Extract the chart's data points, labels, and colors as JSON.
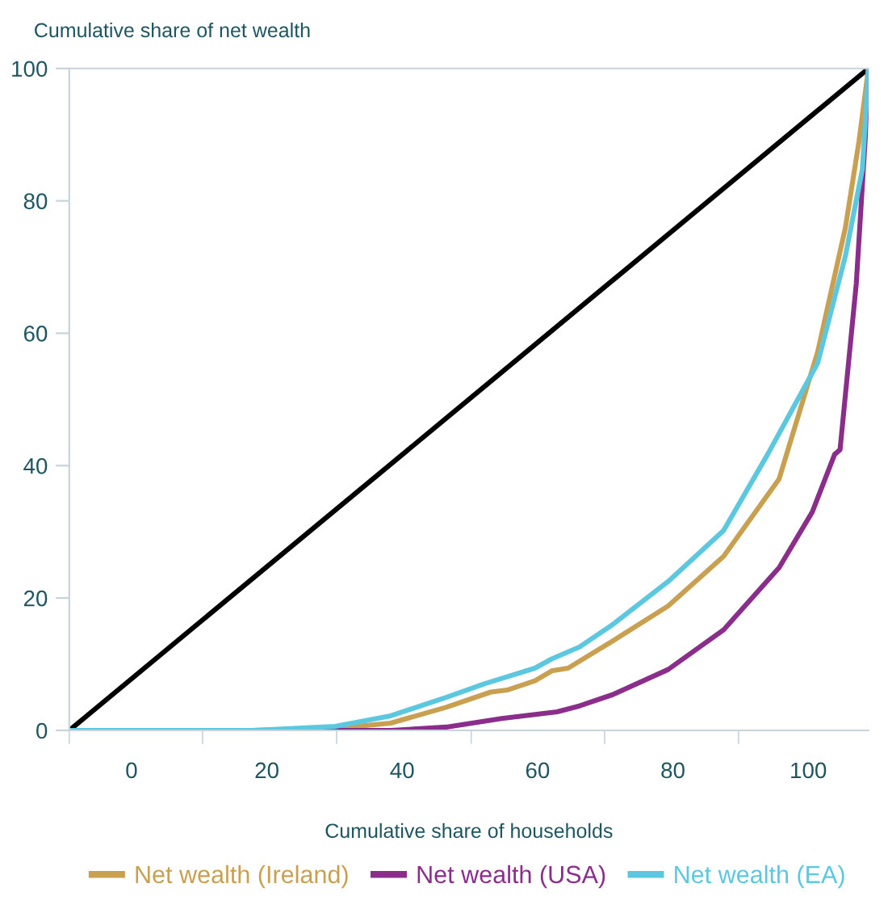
{
  "chart_data": {
    "type": "line",
    "ylabel": "Cumulative share of net wealth",
    "xlabel": "Cumulative share of households",
    "xlim": [
      -9.2,
      108.9
    ],
    "xticks": [
      {
        "value": -9.2,
        "label": null
      },
      {
        "value": 10.5,
        "label": null
      },
      {
        "value": 30.3,
        "label": null
      },
      {
        "value": 50.2,
        "label": null
      },
      {
        "value": 69.9,
        "label": null
      },
      {
        "value": 89.7,
        "label": null
      },
      0,
      20,
      40,
      60,
      80,
      100
    ],
    "ylim": [
      0,
      100
    ],
    "yticks": [
      0,
      20,
      40,
      60,
      80,
      100
    ],
    "grid": false,
    "legend": "bottom",
    "marker": "none",
    "line_style": "solid",
    "series": [
      {
        "color": "#000000",
        "x": [
          -9.2,
          108.9
        ],
        "values": [
          0,
          100
        ]
      },
      {
        "name": "Net wealth (Ireland)",
        "color": "#c9a04f",
        "x": [
          -9.2,
          17.9,
          30.1,
          38.3,
          46.5,
          53.1,
          55.5,
          59.6,
          62.1,
          64.5,
          71.1,
          79.3,
          87.5,
          95.7,
          101.4,
          105.5,
          107.5,
          108.9
        ],
        "values": [
          0,
          0,
          0.3,
          1.1,
          3.5,
          5.8,
          6.1,
          7.5,
          9,
          9.4,
          13.5,
          18.8,
          26.3,
          38,
          57.2,
          76,
          89,
          100
        ]
      },
      {
        "name": "Net wealth (USA)",
        "color": "#8b2d8a",
        "x": [
          -9.2,
          38.3,
          46.5,
          54.7,
          62.9,
          66.2,
          71.1,
          79.3,
          87.5,
          95.7,
          100.6,
          103.9,
          104.7,
          107.1,
          108.4,
          108.9
        ],
        "values": [
          0,
          0,
          0.5,
          1.8,
          2.8,
          3.7,
          5.4,
          9.2,
          15.2,
          24.6,
          33,
          41.7,
          42.4,
          67.5,
          89,
          100
        ]
      },
      {
        "name": "Net wealth (EA)",
        "color": "#5bc8e0",
        "x": [
          -9.2,
          17.9,
          30.1,
          38.3,
          46.5,
          52.3,
          55.5,
          59.6,
          62.1,
          66.2,
          71.1,
          79.3,
          87.5,
          94,
          101.4,
          105.5,
          108,
          108.9
        ],
        "values": [
          0,
          0,
          0.6,
          2.2,
          5,
          7.1,
          8.1,
          9.4,
          10.8,
          12.6,
          16,
          22.5,
          30.2,
          41.7,
          55.5,
          71.7,
          84.8,
          100
        ]
      }
    ]
  }
}
